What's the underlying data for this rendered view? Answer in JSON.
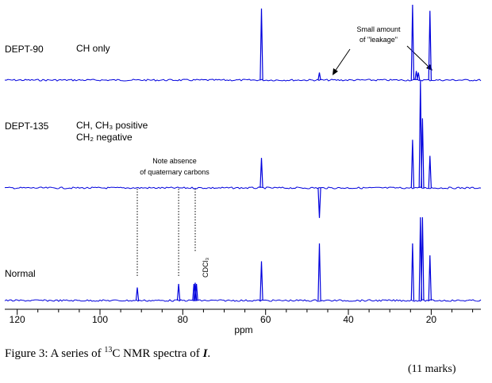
{
  "chart_data": {
    "type": "line",
    "xlabel": "ppm",
    "x_reversed": true,
    "xlim": [
      123,
      8
    ],
    "x_ticks": [
      120,
      100,
      80,
      60,
      40,
      20
    ],
    "series": [
      {
        "name": "DEPT-90",
        "description_label": "CH only",
        "peaks": [
          {
            "ppm": 61.0,
            "intensity": 0.95
          },
          {
            "ppm": 47.0,
            "intensity": 0.1
          },
          {
            "ppm": 24.5,
            "intensity": 1.0
          },
          {
            "ppm": 23.6,
            "intensity": 0.12
          },
          {
            "ppm": 23.1,
            "intensity": 0.1
          },
          {
            "ppm": 20.3,
            "intensity": 0.92
          }
        ]
      },
      {
        "name": "DEPT-135",
        "description_label_line1": "CH, CH₃ positive",
        "description_label_line2": "CH₂ negative",
        "peaks": [
          {
            "ppm": 61.0,
            "intensity": 0.28
          },
          {
            "ppm": 47.0,
            "intensity": -0.28
          },
          {
            "ppm": 24.5,
            "intensity": 0.45
          },
          {
            "ppm": 22.6,
            "intensity": 1.0
          },
          {
            "ppm": 22.1,
            "intensity": 0.65
          },
          {
            "ppm": 20.3,
            "intensity": 0.3
          }
        ]
      },
      {
        "name": "Normal",
        "peaks": [
          {
            "ppm": 91.0,
            "intensity": 0.11
          },
          {
            "ppm": 81.0,
            "intensity": 0.14
          },
          {
            "ppm": 77.3,
            "intensity": 0.14
          },
          {
            "ppm": 77.0,
            "intensity": 0.15
          },
          {
            "ppm": 76.7,
            "intensity": 0.14
          },
          {
            "ppm": 61.0,
            "intensity": 0.33
          },
          {
            "ppm": 47.0,
            "intensity": 0.48
          },
          {
            "ppm": 24.5,
            "intensity": 0.48
          },
          {
            "ppm": 22.6,
            "intensity": 0.7
          },
          {
            "ppm": 22.1,
            "intensity": 0.7
          },
          {
            "ppm": 20.3,
            "intensity": 0.38
          }
        ]
      }
    ],
    "annotations": {
      "leakage_line1": "Small amount",
      "leakage_line2": "of \"leakage\"",
      "quaternary_line1": "Note absence",
      "quaternary_line2": "of quaternary carbons",
      "solvent_label": "CDCl₃",
      "quaternary_ppm": [
        91.0,
        81.0,
        77.0
      ]
    },
    "line_color": "#0000dd"
  },
  "caption": {
    "prefix": "Figure 3: A series of ",
    "isotope": "13",
    "mid": "C NMR spectra of ",
    "compound": "I",
    "suffix": "."
  },
  "marks": "(11 marks)"
}
